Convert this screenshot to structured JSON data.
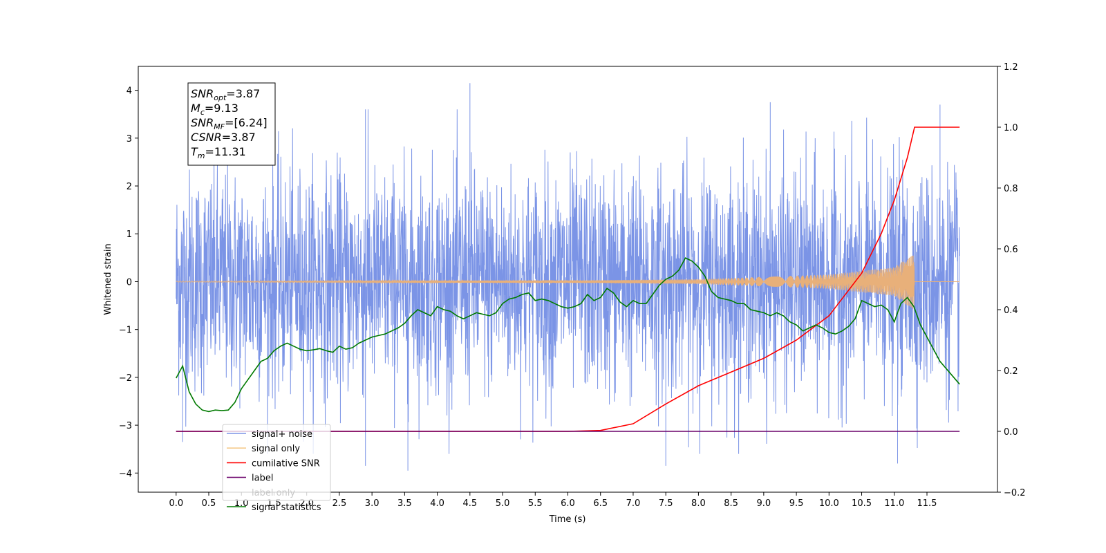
{
  "chart_data": {
    "type": "line",
    "xlabel": "Time (s)",
    "ylabel": "Whitened strain",
    "xlim": [
      -0.58,
      12.58
    ],
    "ylim": [
      -4.4,
      4.5
    ],
    "y2lim": [
      -0.2,
      1.2
    ],
    "x_ticks": [
      "0.0",
      "0.5",
      "1.0",
      "1.5",
      "2.0",
      "2.5",
      "3.0",
      "3.5",
      "4.0",
      "4.5",
      "5.0",
      "5.5",
      "6.0",
      "6.5",
      "7.0",
      "7.5",
      "8.0",
      "8.5",
      "9.0",
      "9.5",
      "10.0",
      "10.5",
      "11.0",
      "11.5"
    ],
    "y_ticks": [
      "4",
      "3",
      "2",
      "1",
      "0",
      "-1",
      "-2",
      "-3",
      "-4"
    ],
    "y2_ticks": [
      "1.2",
      "1.0",
      "0.8",
      "0.6",
      "0.4",
      "0.2",
      "0.0",
      "-0.2"
    ],
    "grid": false,
    "legend_position": "lower-left",
    "info_box": {
      "lines": [
        {
          "main": "SNR",
          "sub": "opt",
          "rest": "=3.87"
        },
        {
          "main": "M",
          "sub": "c",
          "rest": "=9.13"
        },
        {
          "main": "SNR",
          "sub": "MF",
          "rest": "=[6.24]"
        },
        {
          "main": "CSNR",
          "sub": "",
          "rest": "=3.87"
        },
        {
          "main": "T",
          "sub": "m",
          "rest": "=11.31"
        }
      ]
    },
    "series": [
      {
        "name": "signal+ noise",
        "axis": "left",
        "color": "#7b94e6",
        "x_range": [
          0.0,
          12.0
        ],
        "envelope": {
          "typical_amplitude": 2.1,
          "peak_values": [
            {
              "x": 4.5,
              "y": 4.15
            },
            {
              "x": 2.9,
              "y": 3.6
            },
            {
              "x": 9.1,
              "y": 3.75
            },
            {
              "x": 11.7,
              "y": 3.7
            },
            {
              "x": 3.55,
              "y": -3.95
            },
            {
              "x": 2.9,
              "y": -3.85
            },
            {
              "x": 7.5,
              "y": -3.85
            },
            {
              "x": 11.05,
              "y": -3.8
            },
            {
              "x": 0.1,
              "y": -3.35
            }
          ]
        }
      },
      {
        "name": "signal only",
        "axis": "left",
        "color": "#e8b07a",
        "x_range": [
          0.0,
          12.0
        ],
        "chirp_end": 11.31,
        "amplitude_points": [
          [
            0.0,
            0.01
          ],
          [
            6.5,
            0.03
          ],
          [
            8.0,
            0.05
          ],
          [
            10.0,
            0.15
          ],
          [
            11.0,
            0.3
          ],
          [
            11.3,
            0.6
          ],
          [
            11.31,
            0.0
          ]
        ]
      },
      {
        "name": "cumilative SNR",
        "axis": "right",
        "color": "#ff0000",
        "x": [
          0.0,
          6.0,
          6.5,
          7.0,
          7.5,
          8.0,
          8.5,
          9.0,
          9.5,
          10.0,
          10.5,
          10.8,
          11.0,
          11.2,
          11.31,
          12.0
        ],
        "y": [
          0.0,
          0.0,
          0.003,
          0.025,
          0.09,
          0.15,
          0.195,
          0.24,
          0.3,
          0.38,
          0.52,
          0.65,
          0.76,
          0.9,
          1.0,
          1.0
        ]
      },
      {
        "name": "label",
        "axis": "right",
        "color": "#6a006a",
        "x": [
          0.0,
          12.0
        ],
        "y": [
          0.0,
          0.0
        ]
      },
      {
        "name": "label only",
        "axis": "right",
        "color": "#888888",
        "x": [],
        "y": []
      },
      {
        "name": "signal statistics",
        "axis": "right",
        "color": "#007a00",
        "x": [
          0.0,
          0.1,
          0.2,
          0.3,
          0.4,
          0.5,
          0.6,
          0.7,
          0.8,
          0.9,
          1.0,
          1.1,
          1.2,
          1.3,
          1.4,
          1.5,
          1.6,
          1.7,
          1.8,
          1.9,
          2.0,
          2.1,
          2.2,
          2.3,
          2.4,
          2.5,
          2.6,
          2.7,
          2.8,
          2.9,
          3.0,
          3.1,
          3.2,
          3.3,
          3.4,
          3.5,
          3.6,
          3.7,
          3.8,
          3.9,
          4.0,
          4.1,
          4.2,
          4.3,
          4.4,
          4.5,
          4.6,
          4.7,
          4.8,
          4.9,
          5.0,
          5.1,
          5.2,
          5.3,
          5.4,
          5.5,
          5.6,
          5.7,
          5.8,
          5.9,
          6.0,
          6.1,
          6.2,
          6.3,
          6.4,
          6.5,
          6.6,
          6.7,
          6.8,
          6.9,
          7.0,
          7.1,
          7.2,
          7.3,
          7.4,
          7.5,
          7.6,
          7.7,
          7.8,
          7.9,
          8.0,
          8.1,
          8.2,
          8.3,
          8.4,
          8.5,
          8.6,
          8.7,
          8.8,
          8.9,
          9.0,
          9.1,
          9.2,
          9.3,
          9.4,
          9.5,
          9.6,
          9.7,
          9.8,
          9.9,
          10.0,
          10.1,
          10.2,
          10.3,
          10.4,
          10.5,
          10.6,
          10.7,
          10.8,
          10.9,
          11.0,
          11.1,
          11.2,
          11.3,
          11.4,
          11.5,
          11.6,
          11.7,
          11.8,
          11.9,
          12.0
        ],
        "y": [
          0.175,
          0.215,
          0.13,
          0.09,
          0.07,
          0.065,
          0.07,
          0.068,
          0.07,
          0.095,
          0.14,
          0.17,
          0.2,
          0.23,
          0.24,
          0.265,
          0.28,
          0.29,
          0.28,
          0.27,
          0.265,
          0.268,
          0.272,
          0.265,
          0.26,
          0.28,
          0.27,
          0.275,
          0.29,
          0.3,
          0.31,
          0.315,
          0.32,
          0.33,
          0.34,
          0.355,
          0.38,
          0.4,
          0.39,
          0.38,
          0.41,
          0.4,
          0.395,
          0.38,
          0.37,
          0.38,
          0.39,
          0.385,
          0.38,
          0.39,
          0.42,
          0.435,
          0.44,
          0.45,
          0.455,
          0.43,
          0.435,
          0.43,
          0.42,
          0.41,
          0.405,
          0.41,
          0.42,
          0.45,
          0.43,
          0.44,
          0.47,
          0.455,
          0.425,
          0.41,
          0.43,
          0.42,
          0.42,
          0.45,
          0.48,
          0.5,
          0.51,
          0.53,
          0.57,
          0.56,
          0.54,
          0.51,
          0.46,
          0.44,
          0.435,
          0.43,
          0.42,
          0.42,
          0.4,
          0.395,
          0.39,
          0.38,
          0.39,
          0.38,
          0.36,
          0.35,
          0.33,
          0.34,
          0.35,
          0.34,
          0.325,
          0.32,
          0.33,
          0.345,
          0.37,
          0.43,
          0.42,
          0.41,
          0.415,
          0.4,
          0.36,
          0.42,
          0.44,
          0.41,
          0.35,
          0.31,
          0.27,
          0.23,
          0.205,
          0.18,
          0.155
        ]
      }
    ]
  }
}
